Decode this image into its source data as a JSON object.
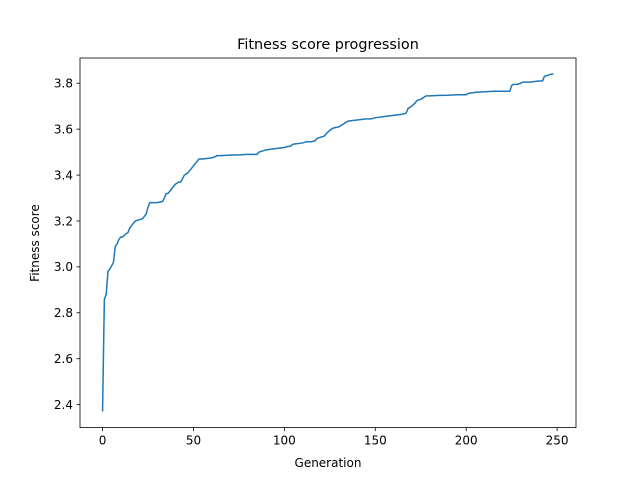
{
  "chart_data": {
    "type": "line",
    "title": "Fitness score progression",
    "xlabel": "Generation",
    "ylabel": "Fitness score",
    "xlim": [
      -12.4,
      260.4
    ],
    "ylim": [
      2.3,
      3.91
    ],
    "xticks": [
      0,
      50,
      100,
      150,
      200,
      250
    ],
    "xtick_labels": [
      "0",
      "50",
      "100",
      "150",
      "200",
      "250"
    ],
    "yticks": [
      2.4,
      2.6,
      2.8,
      3.0,
      3.2,
      3.4,
      3.6,
      3.8
    ],
    "ytick_labels": [
      "2.4",
      "2.6",
      "2.8",
      "3.0",
      "3.2",
      "3.4",
      "3.6",
      "3.8"
    ],
    "grid": false,
    "legend": "none",
    "series": [
      {
        "color": "#1f77b4",
        "x": [
          0,
          1,
          2,
          3,
          4,
          6,
          7,
          8,
          9,
          10,
          11,
          13,
          14,
          15,
          16,
          18,
          20,
          22,
          24,
          25,
          26,
          27,
          30,
          33,
          34,
          35,
          36,
          38,
          40,
          42,
          43,
          45,
          47,
          49,
          50,
          52,
          53,
          55,
          60,
          62,
          63,
          65,
          70,
          75,
          80,
          85,
          86,
          88,
          90,
          95,
          100,
          102,
          103,
          105,
          110,
          112,
          115,
          117,
          118,
          120,
          122,
          123,
          125,
          127,
          130,
          132,
          135,
          140,
          145,
          148,
          150,
          155,
          160,
          165,
          167,
          168,
          170,
          172,
          173,
          175,
          177,
          178,
          180,
          185,
          190,
          195,
          200,
          201,
          202,
          205,
          210,
          215,
          220,
          224,
          225,
          226,
          228,
          230,
          231,
          235,
          240,
          242,
          243,
          245,
          247,
          248
        ],
        "y": [
          2.37,
          2.86,
          2.88,
          2.98,
          2.99,
          3.02,
          3.09,
          3.1,
          3.12,
          3.13,
          3.13,
          3.145,
          3.15,
          3.17,
          3.18,
          3.2,
          3.205,
          3.21,
          3.23,
          3.26,
          3.28,
          3.28,
          3.28,
          3.285,
          3.3,
          3.32,
          3.32,
          3.34,
          3.36,
          3.37,
          3.37,
          3.4,
          3.41,
          3.43,
          3.44,
          3.46,
          3.47,
          3.47,
          3.475,
          3.48,
          3.485,
          3.485,
          3.487,
          3.488,
          3.49,
          3.49,
          3.5,
          3.505,
          3.51,
          3.515,
          3.52,
          3.525,
          3.525,
          3.535,
          3.54,
          3.545,
          3.545,
          3.55,
          3.56,
          3.565,
          3.57,
          3.58,
          3.595,
          3.605,
          3.61,
          3.62,
          3.635,
          3.64,
          3.645,
          3.645,
          3.65,
          3.655,
          3.66,
          3.665,
          3.67,
          3.69,
          3.7,
          3.715,
          3.725,
          3.73,
          3.74,
          3.745,
          3.745,
          3.747,
          3.748,
          3.75,
          3.75,
          3.755,
          3.757,
          3.76,
          3.763,
          3.765,
          3.765,
          3.765,
          3.79,
          3.795,
          3.795,
          3.8,
          3.805,
          3.805,
          3.81,
          3.81,
          3.83,
          3.835,
          3.84,
          3.84
        ]
      }
    ]
  }
}
